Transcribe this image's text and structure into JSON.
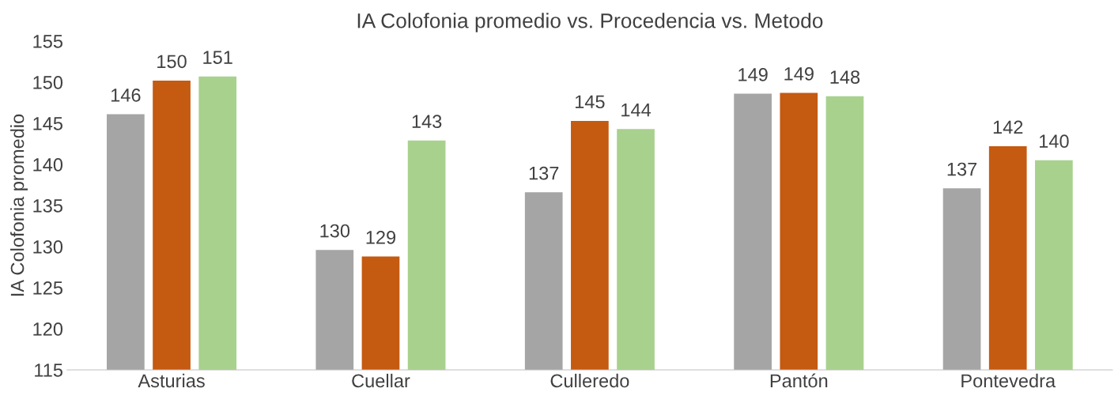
{
  "chart_data": {
    "type": "bar",
    "title": "IA Colofonia promedio vs. Procedencia vs. Metodo",
    "ylabel": "IA Colofonia promedio",
    "categories": [
      "Asturias",
      "Cuellar",
      "Culleredo",
      "Pantón",
      "Pontevedra"
    ],
    "series": [
      {
        "color": "#a5a5a5",
        "values": [
          146.1,
          129.6,
          136.6,
          148.6,
          137.1
        ],
        "value_labels": [
          "146",
          "130",
          "137",
          "149",
          "137"
        ]
      },
      {
        "color": "#c55a11",
        "values": [
          150.2,
          128.8,
          145.3,
          148.7,
          142.2
        ],
        "value_labels": [
          "150",
          "129",
          "145",
          "149",
          "142"
        ]
      },
      {
        "color": "#a9d18e",
        "values": [
          150.7,
          142.9,
          144.3,
          148.3,
          140.5
        ],
        "value_labels": [
          "151",
          "143",
          "144",
          "148",
          "140"
        ]
      }
    ],
    "ylim": [
      115,
      155
    ],
    "yticks": [
      115,
      120,
      125,
      130,
      135,
      140,
      145,
      150,
      155
    ],
    "grid": false,
    "legend": false
  }
}
